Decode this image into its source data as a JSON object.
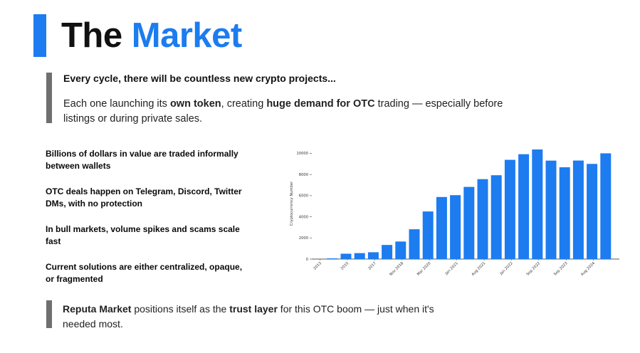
{
  "title": {
    "word1": "The",
    "word2": "Market"
  },
  "intro": {
    "headline": "Every cycle, there will be countless new crypto projects...",
    "body_parts": [
      "Each one launching its ",
      "own token",
      ", creating ",
      "huge demand for OTC",
      " trading — especially before listings or during private sales."
    ]
  },
  "bullets": [
    "Billions of dollars in value are traded informally between wallets",
    "OTC deals happen on Telegram, Discord, Twitter DMs, with no protection",
    "In bull markets, volume spikes and scams scale fast",
    "Current solutions are either centralized, opaque, or fragmented"
  ],
  "chart_data": {
    "type": "bar",
    "ylabel": "Cryptocurrency Number",
    "ylim": [
      0,
      10500
    ],
    "yticks": [
      0,
      2000,
      4000,
      6000,
      8000,
      10000
    ],
    "color": "#1c7cf0",
    "values": [
      66,
      506,
      562,
      644,
      1335,
      1658,
      2817,
      4501,
      5869,
      6044,
      6825,
      7557,
      7928,
      9385,
      9916,
      10363,
      9310,
      8680,
      9317,
      9000,
      10000
    ],
    "xtick_labels": [
      {
        "index": 1,
        "label": "2013"
      },
      {
        "index": 3,
        "label": "2015"
      },
      {
        "index": 5,
        "label": "2017"
      },
      {
        "index": 7,
        "label": "Nov 2018"
      },
      {
        "index": 9,
        "label": "Mar 2020"
      },
      {
        "index": 11,
        "label": "Jan 2021"
      },
      {
        "index": 13,
        "label": "Aug 2021"
      },
      {
        "index": 15,
        "label": "Jan 2022"
      },
      {
        "index": 17,
        "label": "Sep 2022"
      },
      {
        "index": 19,
        "label": "Sep 2023"
      },
      {
        "index": 21,
        "label": "Aug 2024"
      }
    ]
  },
  "footer": {
    "parts": [
      "Reputa Market",
      " positions itself as the ",
      "trust layer",
      " for this OTC boom — just when it's needed most."
    ]
  }
}
